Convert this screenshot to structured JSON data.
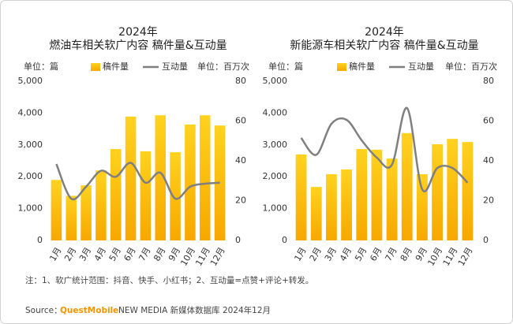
{
  "chart_data": [
    {
      "type": "combo",
      "title": "2024年",
      "subtitle": "燃油车相关软广内容 稿件量&互动量",
      "y_label": "单位：篇",
      "y2_label": "单位：百万次",
      "categories": [
        "1月",
        "2月",
        "3月",
        "4月",
        "5月",
        "6月",
        "7月",
        "8月",
        "9月",
        "10月",
        "11月",
        "12月"
      ],
      "series": [
        {
          "name": "稿件量",
          "type": "bar",
          "color": "#f5b400",
          "values": [
            1900,
            1400,
            1730,
            2200,
            2870,
            3890,
            2800,
            3930,
            2770,
            3640,
            3930,
            3610
          ]
        },
        {
          "name": "互动量",
          "type": "line",
          "axis": "y2",
          "color": "#7f7f7f",
          "values": [
            38.4,
            21,
            27,
            35,
            32,
            39,
            29,
            34,
            21,
            27,
            28.5,
            29
          ]
        }
      ],
      "ylim": [
        0,
        5000
      ],
      "yticks": [
        0,
        {
          "value": 1000,
          "label": "1,000"
        },
        {
          "value": 2000,
          "label": "2,000"
        },
        {
          "value": 3000,
          "label": "3,000"
        },
        {
          "value": 4000,
          "label": "4,000"
        },
        {
          "value": 5000,
          "label": "5,000"
        }
      ],
      "y2lim": [
        0,
        80
      ],
      "y2ticks": [
        0,
        20,
        40,
        60,
        80
      ]
    },
    {
      "type": "combo",
      "title": "2024年",
      "subtitle": "新能源车相关软广内容 稿件量&互动量",
      "y_label": "单位：篇",
      "y2_label": "单位：百万次",
      "categories": [
        "1月",
        "2月",
        "3月",
        "4月",
        "5月",
        "6月",
        "7月",
        "8月",
        "9月",
        "10月",
        "11月",
        "12月"
      ],
      "series": [
        {
          "name": "稿件量",
          "type": "bar",
          "color": "#f5b400",
          "values": [
            2700,
            1680,
            2080,
            2230,
            2870,
            2850,
            2570,
            3370,
            2080,
            3020,
            3190,
            3090
          ]
        },
        {
          "name": "互动量",
          "type": "line",
          "axis": "y2",
          "color": "#7f7f7f",
          "values": [
            51.5,
            43,
            58.6,
            60.6,
            50.3,
            41.6,
            38,
            66.5,
            25.7,
            36.4,
            36.4,
            29
          ]
        }
      ],
      "ylim": [
        0,
        5000
      ],
      "yticks": [
        0,
        {
          "value": 1000,
          "label": "1,000"
        },
        {
          "value": 2000,
          "label": "2,000"
        },
        {
          "value": 3000,
          "label": "3,000"
        },
        {
          "value": 4000,
          "label": "4,000"
        },
        {
          "value": 5000,
          "label": "5,000"
        }
      ],
      "y2lim": [
        0,
        80
      ],
      "y2ticks": [
        0,
        20,
        40,
        60,
        80
      ]
    }
  ],
  "footnote": "注：1、软广统计范围：抖音、快手、小红书；2、互动量=点赞+评论+转发。",
  "source": {
    "label": "Source：",
    "brand": "QuestMobile",
    "text": "NEW MEDIA 新媒体数据库 2024年12月"
  }
}
